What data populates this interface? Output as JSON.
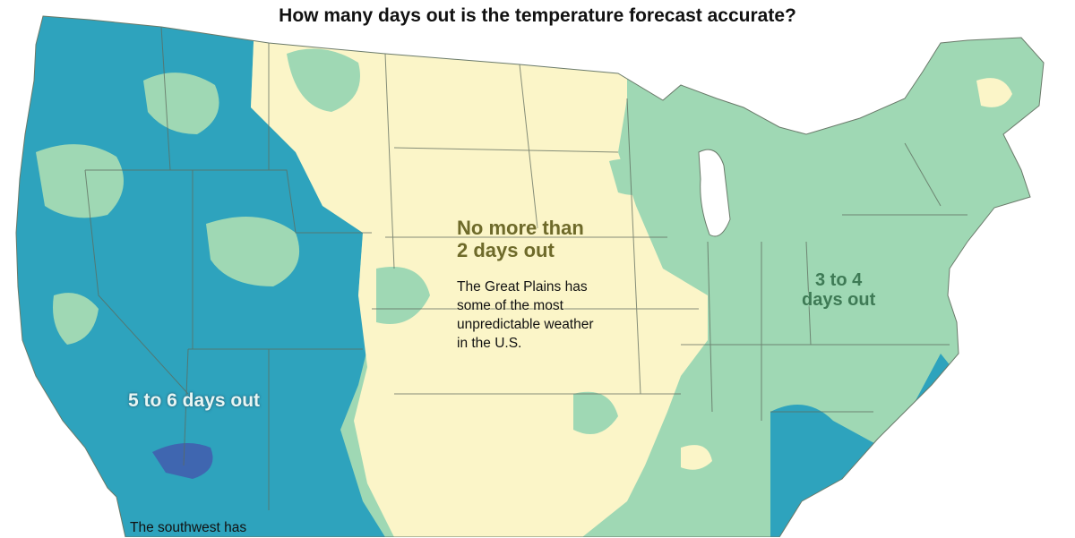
{
  "title": "How many days out is the temperature forecast accurate?",
  "colors": {
    "band_0_2": "#fbf5c8",
    "band_3_4": "#9fd8b4",
    "band_5_6": "#2ea3bd",
    "band_7": "#3f66b0",
    "state_border": "#5d6a5c"
  },
  "regions": {
    "plains": {
      "label_lines": [
        "No more than",
        "2 days out"
      ],
      "note_lines": [
        "The Great Plains has",
        "some of the most",
        "unpredictable weather",
        "in the U.S."
      ]
    },
    "east": {
      "label_lines": [
        "3 to 4",
        "days out"
      ]
    },
    "southwest": {
      "label": "5 to 6 days out",
      "note": "The southwest has"
    }
  }
}
